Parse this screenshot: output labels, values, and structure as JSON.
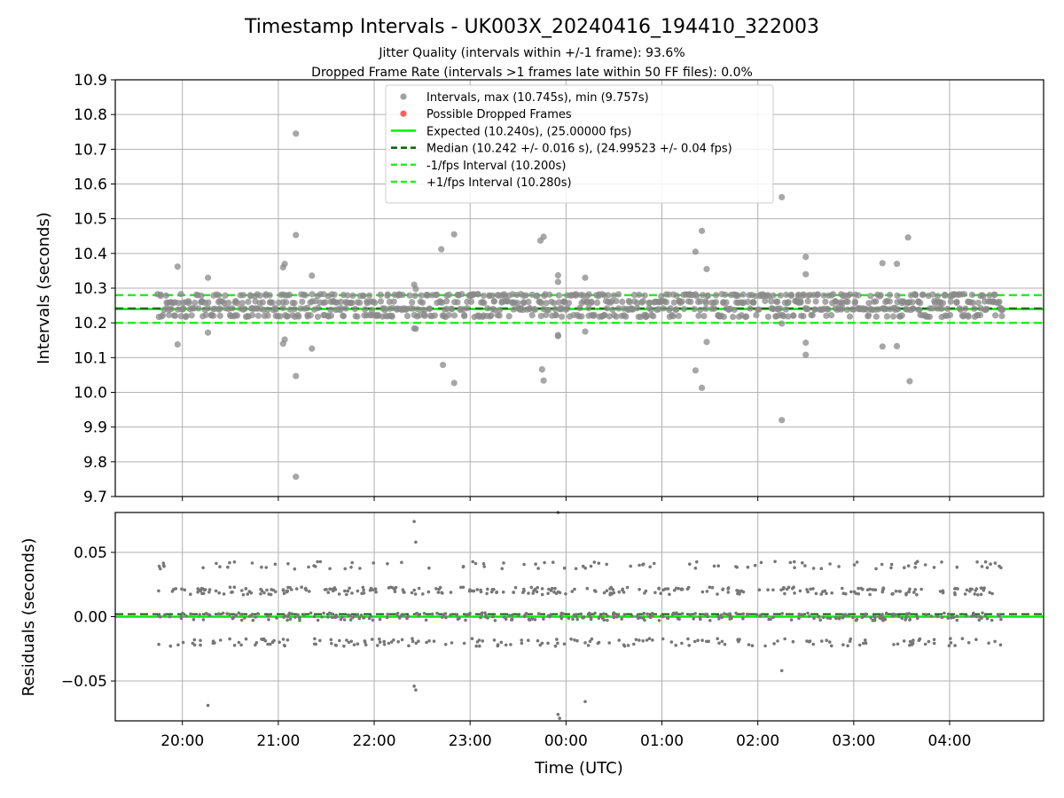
{
  "chart_data": [
    {
      "type": "scatter",
      "title": "Timestamp Intervals - UK003X_20240416_194410_322003",
      "subtitle_lines": [
        "Jitter Quality (intervals within +/-1 frame): 93.6%",
        "Dropped Frame Rate (intervals >1 frames late within 50 FF files): 0.0%"
      ],
      "ylabel": "Intervals (seconds)",
      "ylim": [
        9.7,
        10.9
      ],
      "y_ticks": [
        "9.7",
        "9.8",
        "9.9",
        "10.0",
        "10.1",
        "10.2",
        "10.3",
        "10.4",
        "10.5",
        "10.6",
        "10.7",
        "10.8",
        "10.9"
      ],
      "x_range_hours": [
        19.3,
        4.98
      ],
      "x_ticks": [
        "20:00",
        "21:00",
        "22:00",
        "23:00",
        "00:00",
        "01:00",
        "02:00",
        "03:00",
        "04:00"
      ],
      "grid": true,
      "legend_position": "upper-center",
      "legend": [
        {
          "label": "Intervals, max (10.745s), min (9.757s)",
          "kind": "marker",
          "color": "#a0a0a0"
        },
        {
          "label": "Possible Dropped Frames",
          "kind": "marker",
          "color": "#ff6060"
        },
        {
          "label": "Expected (10.240s), (25.00000 fps)",
          "kind": "line",
          "color": "#00ee00",
          "dash": false
        },
        {
          "label": "Median (10.242 +/- 0.016 s), (24.99523 +/- 0.04 fps)",
          "kind": "line",
          "color": "#006400",
          "dash": true
        },
        {
          "label": "-1/fps Interval (10.200s)",
          "kind": "line",
          "color": "#22ee22",
          "dash": true
        },
        {
          "label": "+1/fps Interval (10.280s)",
          "kind": "line",
          "color": "#22ee22",
          "dash": true
        }
      ],
      "reference_lines": {
        "expected": 10.24,
        "median": 10.242,
        "minus_1_fps": 10.2,
        "plus_1_fps": 10.28
      },
      "series_range": {
        "start": "19:45",
        "end": "04:33",
        "bands": [
          10.22,
          10.24,
          10.26,
          10.28
        ]
      },
      "outliers": [
        {
          "x": "19:57",
          "y": 10.362
        },
        {
          "x": "19:57",
          "y": 10.138
        },
        {
          "x": "20:16",
          "y": 10.33
        },
        {
          "x": "20:16",
          "y": 10.172
        },
        {
          "x": "21:03",
          "y": 10.36
        },
        {
          "x": "21:04",
          "y": 10.37
        },
        {
          "x": "21:03",
          "y": 10.14
        },
        {
          "x": "21:04",
          "y": 10.152
        },
        {
          "x": "21:11",
          "y": 10.745
        },
        {
          "x": "21:11",
          "y": 10.453
        },
        {
          "x": "21:11",
          "y": 10.047
        },
        {
          "x": "21:11",
          "y": 9.757
        },
        {
          "x": "21:21",
          "y": 10.336
        },
        {
          "x": "21:21",
          "y": 10.126
        },
        {
          "x": "22:25",
          "y": 10.31
        },
        {
          "x": "22:26",
          "y": 10.298
        },
        {
          "x": "22:25",
          "y": 10.184
        },
        {
          "x": "22:26",
          "y": 10.183
        },
        {
          "x": "22:42",
          "y": 10.412
        },
        {
          "x": "22:43",
          "y": 10.079
        },
        {
          "x": "22:50",
          "y": 10.455
        },
        {
          "x": "22:50",
          "y": 10.027
        },
        {
          "x": "23:44",
          "y": 10.437
        },
        {
          "x": "23:46",
          "y": 10.448
        },
        {
          "x": "23:45",
          "y": 10.066
        },
        {
          "x": "23:46",
          "y": 10.034
        },
        {
          "x": "23:55",
          "y": 10.337
        },
        {
          "x": "23:55",
          "y": 10.318
        },
        {
          "x": "23:55",
          "y": 10.165
        },
        {
          "x": "23:55",
          "y": 10.162
        },
        {
          "x": "00:12",
          "y": 10.33
        },
        {
          "x": "00:12",
          "y": 10.175
        },
        {
          "x": "01:21",
          "y": 10.405
        },
        {
          "x": "01:21",
          "y": 10.063
        },
        {
          "x": "01:25",
          "y": 10.465
        },
        {
          "x": "01:25",
          "y": 10.013
        },
        {
          "x": "01:28",
          "y": 10.355
        },
        {
          "x": "01:28",
          "y": 10.145
        },
        {
          "x": "02:15",
          "y": 10.562
        },
        {
          "x": "02:15",
          "y": 9.92
        },
        {
          "x": "02:15",
          "y": 10.198
        },
        {
          "x": "02:30",
          "y": 10.39
        },
        {
          "x": "02:30",
          "y": 10.34
        },
        {
          "x": "02:30",
          "y": 10.143
        },
        {
          "x": "02:30",
          "y": 10.108
        },
        {
          "x": "03:18",
          "y": 10.372
        },
        {
          "x": "03:18",
          "y": 10.132
        },
        {
          "x": "03:27",
          "y": 10.37
        },
        {
          "x": "03:27",
          "y": 10.133
        },
        {
          "x": "03:34",
          "y": 10.446
        },
        {
          "x": "03:35",
          "y": 10.032
        }
      ]
    },
    {
      "type": "scatter",
      "xlabel": "Time (UTC)",
      "ylabel": "Residuals (seconds)",
      "ylim": [
        -0.081,
        0.081
      ],
      "y_ticks": [
        {
          "value": 0.05,
          "label": "0.05"
        },
        {
          "value": 0.0,
          "label": "0.00"
        },
        {
          "value": -0.05,
          "label": "−0.05"
        }
      ],
      "grid": true,
      "reference_lines": {
        "zero": 0.0,
        "median_offset": 0.002
      },
      "series_bands": [
        -0.02,
        0.0,
        0.02,
        0.04
      ],
      "outliers": [
        {
          "x": "20:16",
          "y": -0.069
        },
        {
          "x": "22:25",
          "y": 0.074
        },
        {
          "x": "22:26",
          "y": 0.058
        },
        {
          "x": "22:25",
          "y": -0.054
        },
        {
          "x": "22:26",
          "y": -0.057
        },
        {
          "x": "23:55",
          "y": 0.081
        },
        {
          "x": "23:55",
          "y": -0.076
        },
        {
          "x": "23:56",
          "y": -0.079
        },
        {
          "x": "00:12",
          "y": -0.066
        },
        {
          "x": "02:15",
          "y": -0.042
        }
      ]
    }
  ]
}
